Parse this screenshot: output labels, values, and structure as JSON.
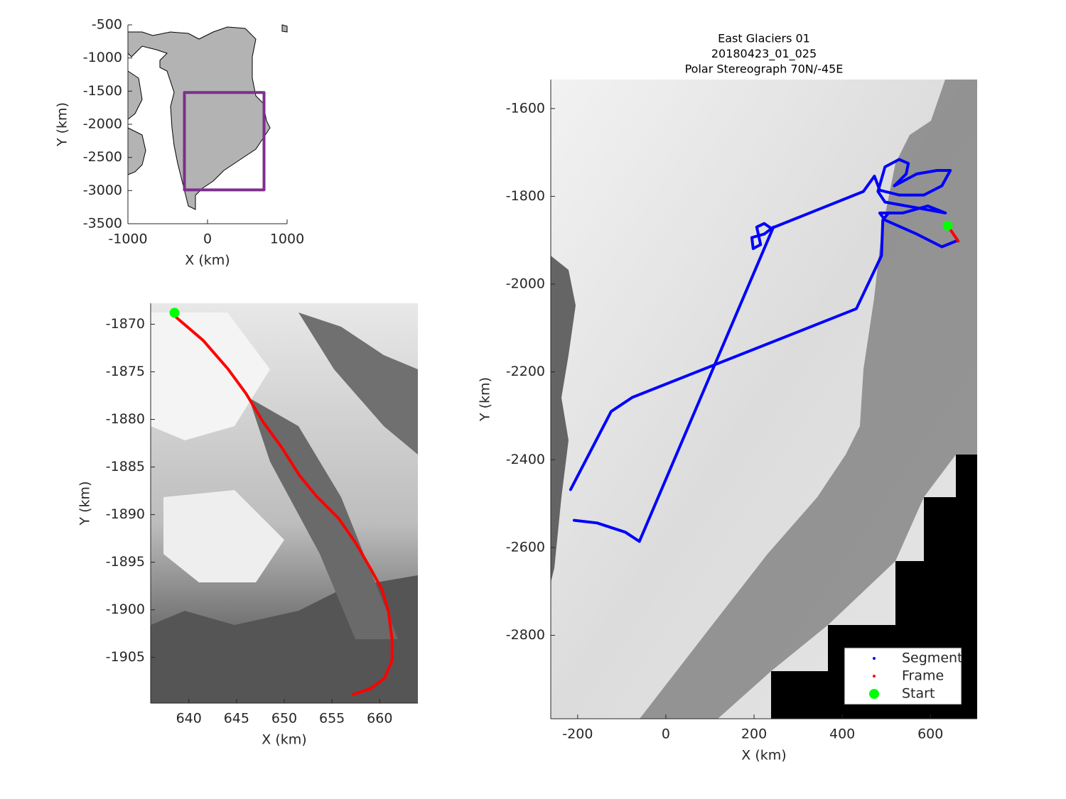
{
  "chart_data": [
    {
      "type": "line",
      "xlabel": "X (km)",
      "ylabel": "Y (km)",
      "xlim": [
        -1000,
        1000
      ],
      "ylim": [
        -3500,
        -500
      ],
      "xticks": [
        -1000,
        0,
        1000
      ],
      "yticks": [
        -500,
        -1000,
        -1500,
        -2000,
        -2500,
        -3000,
        -3500
      ],
      "series": [
        {
          "color": "#7e2f8e",
          "x": [
            -290,
            710,
            710,
            -290,
            -290
          ],
          "y": [
            -1520,
            -1520,
            -2990,
            -2990,
            -1520
          ]
        }
      ]
    },
    {
      "type": "line",
      "xlabel": "X (km)",
      "ylabel": "Y (km)",
      "xlim": [
        636,
        664
      ],
      "ylim": [
        -1909.8,
        -1867.8
      ],
      "xticks": [
        640,
        645,
        650,
        655,
        660
      ],
      "yticks": [
        -1870,
        -1875,
        -1880,
        -1885,
        -1890,
        -1895,
        -1900,
        -1905
      ],
      "series": [
        {
          "color": "#ff0000",
          "x": [
            638.7,
            641.5,
            644.1,
            646.0,
            647.8,
            649.7,
            651.6,
            653.4,
            655.7,
            657.5,
            659.0,
            660.2,
            660.9,
            661.3,
            661.3,
            660.5,
            659.0,
            657.2
          ],
          "y": [
            -1869.3,
            -1871.7,
            -1874.7,
            -1877.3,
            -1880.3,
            -1882.9,
            -1885.9,
            -1888.1,
            -1890.4,
            -1893.0,
            -1895.6,
            -1897.8,
            -1900.1,
            -1903.1,
            -1905.3,
            -1907.2,
            -1908.3,
            -1908.9
          ]
        },
        {
          "color": "#00ff00",
          "x": [
            638.5
          ],
          "y": [
            -1868.8
          ]
        }
      ]
    },
    {
      "type": "line",
      "title": [
        "East Glaciers 01",
        "20180423_01_025",
        "Polar Stereograph 70N/-45E"
      ],
      "xlabel": "X (km)",
      "ylabel": "Y (km)",
      "xlim": [
        -261,
        706
      ],
      "ylim": [
        -2990,
        -1534
      ],
      "xticks": [
        -200,
        0,
        200,
        400,
        600
      ],
      "yticks": [
        -1600,
        -1800,
        -2000,
        -2200,
        -2400,
        -2600,
        -2800
      ],
      "legend": "southeast",
      "series": [
        {
          "name": "Segment",
          "color": "#0000ff",
          "x": [
            658,
            626,
            569,
            497,
            485,
            537,
            594,
            634,
            497,
            481,
            497,
            529,
            550,
            545,
            518,
            569,
            615,
            645,
            626,
            585,
            529,
            485,
            473,
            448,
            239,
            223,
            206,
            215,
            198,
            195,
            223,
            244,
            -60,
            -92,
            -156,
            -208,
            null,
            -216,
            -124,
            -76,
            432,
            489,
            492,
            505
          ],
          "y": [
            -1902,
            -1915,
            -1886,
            -1854,
            -1838,
            -1838,
            -1822,
            -1838,
            -1813,
            -1789,
            -1733,
            -1716,
            -1725,
            -1749,
            -1776,
            -1749,
            -1741,
            -1741,
            -1776,
            -1797,
            -1797,
            -1786,
            -1754,
            -1789,
            -1873,
            -1862,
            -1870,
            -1910,
            -1919,
            -1894,
            -1886,
            -1870,
            -2586,
            -2565,
            -2544,
            -2538,
            null,
            -2468,
            -2290,
            -2258,
            -2056,
            -1935,
            -1854,
            -1838
          ]
        },
        {
          "name": "Frame",
          "color": "#ff0000",
          "x": [
            639,
            663
          ],
          "y": [
            -1867,
            -1902
          ]
        },
        {
          "name": "Start",
          "color": "#00ff00",
          "x": [
            639
          ],
          "y": [
            -1867
          ]
        }
      ]
    }
  ]
}
